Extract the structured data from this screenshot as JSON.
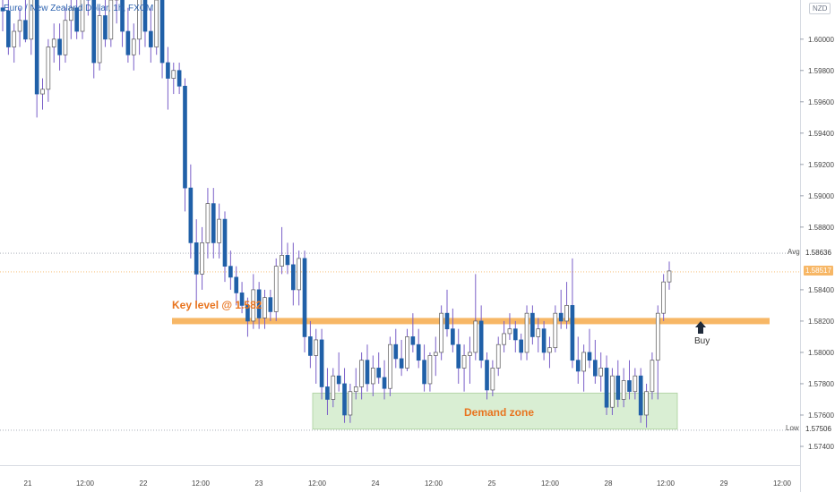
{
  "header": {
    "title": "Euro / New Zealand Dollar, 1h, FXCM",
    "currency": "NZD"
  },
  "annotations": {
    "key_level_label": "Key level @ 1.582",
    "demand_zone_label": "Demand zone",
    "buy_label": "Buy",
    "avg_tag": "Avg",
    "low_tag": "Low",
    "avg_value": "1.58636",
    "low_value": "1.57506",
    "last_price": "1.58517"
  },
  "colors": {
    "bear": "#2060a8",
    "bull": "#ffffff",
    "wick": "#7a5fc8",
    "key_level": "#f7b766",
    "demand_zone": "#d9eed3",
    "label": "#e8741f",
    "last_price": "#f7b766"
  },
  "chart_data": {
    "type": "candlestick",
    "symbol": "EURNZD",
    "timeframe": "1h",
    "y_ticks": [
      "1.60000",
      "1.59800",
      "1.59600",
      "1.59400",
      "1.59200",
      "1.59000",
      "1.58800",
      "1.58636",
      "1.58517",
      "1.58400",
      "1.58200",
      "1.58000",
      "1.57800",
      "1.57600",
      "1.57506",
      "1.57400"
    ],
    "x_ticks": [
      "21",
      "12:00",
      "22",
      "12:00",
      "23",
      "12:00",
      "24",
      "12:00",
      "25",
      "12:00",
      "28",
      "12:00",
      "29",
      "12:00"
    ],
    "ylim": [
      1.5728,
      1.6025
    ],
    "levels": {
      "key_level": 1.582,
      "avg": 1.58636,
      "low": 1.57506,
      "last": 1.58517,
      "demand_zone": [
        1.5751,
        1.5774
      ]
    },
    "ohlc": [
      [
        1.602,
        1.603,
        1.6005,
        1.6018
      ],
      [
        1.6018,
        1.6028,
        1.599,
        1.5995
      ],
      [
        1.5995,
        1.601,
        1.5985,
        1.6005
      ],
      [
        1.6005,
        1.602,
        1.5995,
        1.6012
      ],
      [
        1.6012,
        1.6025,
        1.5998,
        1.6
      ],
      [
        1.6,
        1.6035,
        1.599,
        1.603
      ],
      [
        1.603,
        1.6035,
        1.595,
        1.5965
      ],
      [
        1.5965,
        1.5975,
        1.5955,
        1.5968
      ],
      [
        1.5968,
        1.6,
        1.596,
        1.5995
      ],
      [
        1.5995,
        1.601,
        1.5985,
        1.6
      ],
      [
        1.6,
        1.601,
        1.598,
        1.599
      ],
      [
        1.599,
        1.602,
        1.5985,
        1.6012
      ],
      [
        1.6012,
        1.603,
        1.6,
        1.602
      ],
      [
        1.602,
        1.603,
        1.6,
        1.6005
      ],
      [
        1.6005,
        1.6035,
        1.6,
        1.603
      ],
      [
        1.603,
        1.6035,
        1.6015,
        1.6025
      ],
      [
        1.6025,
        1.6035,
        1.5975,
        1.5985
      ],
      [
        1.5985,
        1.602,
        1.598,
        1.6015
      ],
      [
        1.6015,
        1.6035,
        1.5995,
        1.6
      ],
      [
        1.6,
        1.603,
        1.5995,
        1.6025
      ],
      [
        1.6025,
        1.6035,
        1.601,
        1.603
      ],
      [
        1.603,
        1.6035,
        1.5995,
        1.6005
      ],
      [
        1.6005,
        1.602,
        1.5985,
        1.599
      ],
      [
        1.599,
        1.601,
        1.598,
        1.6
      ],
      [
        1.6,
        1.6035,
        1.599,
        1.603
      ],
      [
        1.603,
        1.6035,
        1.5995,
        1.6005
      ],
      [
        1.6005,
        1.602,
        1.5985,
        1.5995
      ],
      [
        1.5995,
        1.603,
        1.599,
        1.6025
      ],
      [
        1.6025,
        1.6035,
        1.5975,
        1.5985
      ],
      [
        1.5985,
        1.5995,
        1.5955,
        1.5975
      ],
      [
        1.5975,
        1.5985,
        1.5965,
        1.598
      ],
      [
        1.598,
        1.5985,
        1.5965,
        1.597
      ],
      [
        1.597,
        1.5975,
        1.589,
        1.5905
      ],
      [
        1.5905,
        1.592,
        1.586,
        1.587
      ],
      [
        1.587,
        1.5885,
        1.583,
        1.585
      ],
      [
        1.585,
        1.588,
        1.584,
        1.587
      ],
      [
        1.587,
        1.5905,
        1.586,
        1.5895
      ],
      [
        1.5895,
        1.5905,
        1.586,
        1.587
      ],
      [
        1.587,
        1.5895,
        1.586,
        1.5885
      ],
      [
        1.5885,
        1.589,
        1.5845,
        1.5855
      ],
      [
        1.5855,
        1.5865,
        1.584,
        1.5848
      ],
      [
        1.5848,
        1.5855,
        1.583,
        1.5838
      ],
      [
        1.5838,
        1.5845,
        1.5825,
        1.583
      ],
      [
        1.583,
        1.5835,
        1.581,
        1.582
      ],
      [
        1.582,
        1.585,
        1.5815,
        1.584
      ],
      [
        1.584,
        1.5845,
        1.5815,
        1.5822
      ],
      [
        1.5822,
        1.584,
        1.5815,
        1.5835
      ],
      [
        1.5835,
        1.584,
        1.582,
        1.5826
      ],
      [
        1.5826,
        1.586,
        1.582,
        1.5855
      ],
      [
        1.5855,
        1.588,
        1.585,
        1.5862
      ],
      [
        1.5862,
        1.587,
        1.585,
        1.5856
      ],
      [
        1.5856,
        1.587,
        1.583,
        1.584
      ],
      [
        1.584,
        1.5865,
        1.583,
        1.586
      ],
      [
        1.586,
        1.5865,
        1.58,
        1.581
      ],
      [
        1.581,
        1.582,
        1.579,
        1.5798
      ],
      [
        1.5798,
        1.5815,
        1.578,
        1.5808
      ],
      [
        1.5808,
        1.5815,
        1.577,
        1.5778
      ],
      [
        1.5778,
        1.579,
        1.576,
        1.577
      ],
      [
        1.577,
        1.579,
        1.5765,
        1.5785
      ],
      [
        1.5785,
        1.58,
        1.5775,
        1.578
      ],
      [
        1.578,
        1.579,
        1.5755,
        1.576
      ],
      [
        1.576,
        1.578,
        1.5755,
        1.5775
      ],
      [
        1.5775,
        1.579,
        1.577,
        1.5778
      ],
      [
        1.5778,
        1.58,
        1.577,
        1.5795
      ],
      [
        1.5795,
        1.5805,
        1.5775,
        1.578
      ],
      [
        1.578,
        1.5798,
        1.5772,
        1.579
      ],
      [
        1.579,
        1.58,
        1.578,
        1.5784
      ],
      [
        1.5784,
        1.5795,
        1.577,
        1.5777
      ],
      [
        1.5777,
        1.581,
        1.5772,
        1.5805
      ],
      [
        1.5805,
        1.5815,
        1.579,
        1.5796
      ],
      [
        1.5796,
        1.5808,
        1.5785,
        1.579
      ],
      [
        1.579,
        1.5815,
        1.5788,
        1.581
      ],
      [
        1.581,
        1.5825,
        1.58,
        1.5805
      ],
      [
        1.5805,
        1.5815,
        1.579,
        1.5795
      ],
      [
        1.5795,
        1.5805,
        1.5775,
        1.578
      ],
      [
        1.578,
        1.58,
        1.5775,
        1.5798
      ],
      [
        1.5798,
        1.581,
        1.5785,
        1.58
      ],
      [
        1.58,
        1.583,
        1.5795,
        1.5825
      ],
      [
        1.5825,
        1.584,
        1.581,
        1.5815
      ],
      [
        1.5815,
        1.5828,
        1.58,
        1.5805
      ],
      [
        1.5805,
        1.5815,
        1.578,
        1.579
      ],
      [
        1.579,
        1.5805,
        1.5775,
        1.5798
      ],
      [
        1.5798,
        1.581,
        1.578,
        1.58
      ],
      [
        1.58,
        1.585,
        1.5795,
        1.582
      ],
      [
        1.582,
        1.583,
        1.579,
        1.5795
      ],
      [
        1.5795,
        1.58,
        1.577,
        1.5776
      ],
      [
        1.5776,
        1.5795,
        1.5772,
        1.579
      ],
      [
        1.579,
        1.581,
        1.5785,
        1.5805
      ],
      [
        1.5805,
        1.582,
        1.58,
        1.5812
      ],
      [
        1.5812,
        1.5825,
        1.5808,
        1.5815
      ],
      [
        1.5815,
        1.582,
        1.58,
        1.5808
      ],
      [
        1.5808,
        1.5812,
        1.5795,
        1.58
      ],
      [
        1.58,
        1.583,
        1.5795,
        1.5825
      ],
      [
        1.5825,
        1.583,
        1.5805,
        1.581
      ],
      [
        1.581,
        1.5822,
        1.58,
        1.5815
      ],
      [
        1.5815,
        1.582,
        1.5795,
        1.58
      ],
      [
        1.58,
        1.581,
        1.579,
        1.5803
      ],
      [
        1.5803,
        1.583,
        1.58,
        1.5825
      ],
      [
        1.5825,
        1.584,
        1.5815,
        1.582
      ],
      [
        1.582,
        1.5845,
        1.5815,
        1.583
      ],
      [
        1.583,
        1.586,
        1.579,
        1.5795
      ],
      [
        1.5795,
        1.581,
        1.578,
        1.5788
      ],
      [
        1.5788,
        1.5805,
        1.5775,
        1.58
      ],
      [
        1.58,
        1.5815,
        1.579,
        1.5795
      ],
      [
        1.5795,
        1.5808,
        1.578,
        1.5785
      ],
      [
        1.5785,
        1.58,
        1.5775,
        1.579
      ],
      [
        1.579,
        1.5798,
        1.576,
        1.5765
      ],
      [
        1.5765,
        1.579,
        1.576,
        1.5785
      ],
      [
        1.5785,
        1.5795,
        1.5765,
        1.577
      ],
      [
        1.577,
        1.579,
        1.5765,
        1.5782
      ],
      [
        1.5782,
        1.5795,
        1.577,
        1.5775
      ],
      [
        1.5775,
        1.579,
        1.577,
        1.5785
      ],
      [
        1.5785,
        1.579,
        1.5755,
        1.576
      ],
      [
        1.576,
        1.578,
        1.5752,
        1.5775
      ],
      [
        1.5775,
        1.58,
        1.577,
        1.5795
      ],
      [
        1.5795,
        1.583,
        1.577,
        1.5825
      ],
      [
        1.5825,
        1.585,
        1.582,
        1.5845
      ],
      [
        1.5845,
        1.5858,
        1.584,
        1.5852
      ]
    ]
  }
}
